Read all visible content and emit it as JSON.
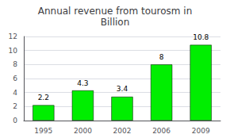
{
  "chart_data": {
    "type": "bar",
    "title": "Annual revenue from tourosm in\nBillion",
    "categories": [
      "1995",
      "2000",
      "2002",
      "2006",
      "2009"
    ],
    "values": [
      2.2,
      4.3,
      3.4,
      8.0,
      10.8
    ],
    "color": "#00ee00",
    "ylim": [
      0,
      12
    ],
    "yticks": [
      0,
      2,
      4,
      6,
      8,
      10,
      12
    ],
    "grid": true,
    "data_labels": true
  }
}
